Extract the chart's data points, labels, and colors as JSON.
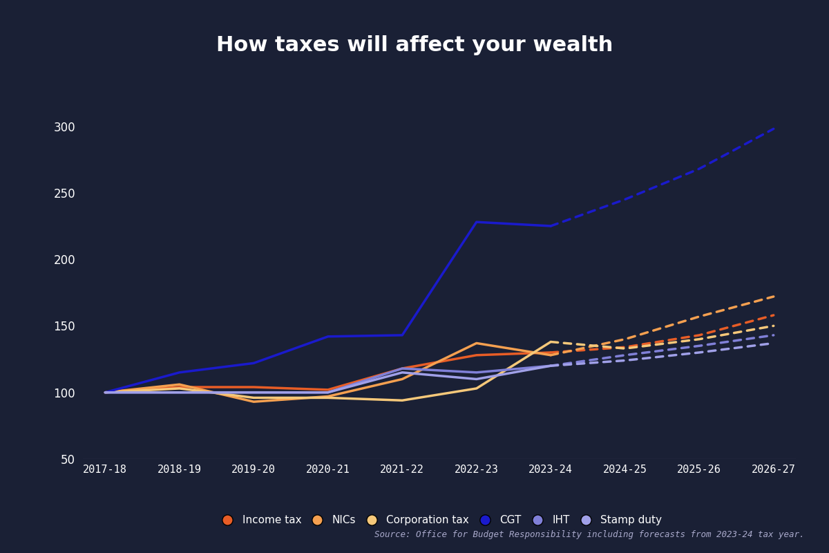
{
  "title": "How taxes will affect your wealth",
  "background_color": "#1a2035",
  "text_color": "#ffffff",
  "source_text": "Source: Office for Budget Responsibility including forecasts from 2023-24 tax year.",
  "x_labels": [
    "2017-18",
    "2018-19",
    "2019-20",
    "2020-21",
    "2021-22",
    "2022-23",
    "2023-24",
    "2024-25",
    "2025-26",
    "2026-27"
  ],
  "ylim": [
    50,
    320
  ],
  "yticks": [
    50,
    100,
    150,
    200,
    250,
    300
  ],
  "series": {
    "income_tax": {
      "label": "Income tax",
      "color": "#e85d26",
      "solid": [
        100,
        104,
        104,
        102,
        118,
        128,
        130
      ],
      "dashed": [
        130,
        134,
        143,
        158
      ]
    },
    "nics": {
      "label": "NICs",
      "color": "#f5a050",
      "solid": [
        100,
        106,
        93,
        97,
        110,
        137,
        128
      ],
      "dashed": [
        128,
        140,
        157,
        172
      ]
    },
    "corp_tax": {
      "label": "Corporation tax",
      "color": "#f5c87a",
      "solid": [
        100,
        103,
        96,
        96,
        94,
        103,
        138
      ],
      "dashed": [
        138,
        133,
        140,
        150
      ]
    },
    "cgt": {
      "label": "CGT",
      "color": "#1a1acc",
      "solid": [
        100,
        115,
        122,
        142,
        143,
        228,
        225
      ],
      "dashed": [
        225,
        245,
        268,
        298
      ]
    },
    "iht": {
      "label": "IHT",
      "color": "#8080d8",
      "solid": [
        100,
        100,
        100,
        100,
        118,
        115,
        120
      ],
      "dashed": [
        120,
        128,
        135,
        143
      ]
    },
    "stamp_duty": {
      "label": "Stamp duty",
      "color": "#a0a0e8",
      "solid": [
        100,
        100,
        100,
        100,
        115,
        110,
        120
      ],
      "dashed": [
        120,
        124,
        130,
        137
      ]
    }
  },
  "legend_order": [
    "income_tax",
    "nics",
    "corp_tax",
    "cgt",
    "iht",
    "stamp_duty"
  ],
  "solid_count": 7,
  "line_width": 2.5
}
